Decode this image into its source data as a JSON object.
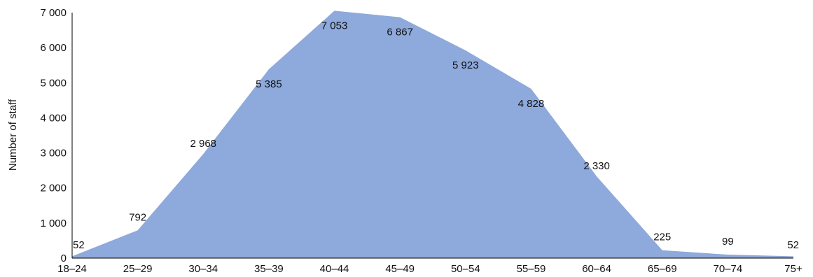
{
  "chart_data": {
    "type": "area",
    "categories": [
      "18–24",
      "25–29",
      "30–34",
      "35–39",
      "40–44",
      "45–49",
      "50–54",
      "55–59",
      "60–64",
      "65–69",
      "70–74",
      "75+"
    ],
    "values": [
      52,
      792,
      2968,
      5385,
      7053,
      6867,
      5923,
      4828,
      2330,
      225,
      99,
      52
    ],
    "data_labels": [
      "52",
      "792",
      "2 968",
      "5 385",
      "7 053",
      "6 867",
      "5 923",
      "4 828",
      "2 330",
      "225",
      "99",
      "52"
    ],
    "ylabel": "Number of staff",
    "ylim": [
      0,
      7000
    ],
    "y_ticks": [
      0,
      1000,
      2000,
      3000,
      4000,
      5000,
      6000,
      7000
    ],
    "y_tick_labels": [
      "0",
      "1 000",
      "2 000",
      "3 000",
      "4 000",
      "5 000",
      "6 000",
      "7 000"
    ],
    "fill_color": "#8ea9db",
    "grid": false,
    "legend": "none"
  }
}
